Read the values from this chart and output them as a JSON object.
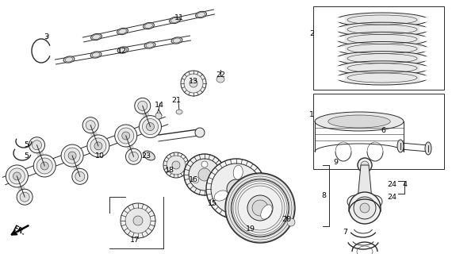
{
  "bg_color": "#ffffff",
  "line_color": "#2a2a2a",
  "fig_width": 5.7,
  "fig_height": 3.2,
  "dpi": 100,
  "labels": [
    [
      "3",
      55,
      42,
      "left"
    ],
    [
      "11",
      220,
      18,
      "left"
    ],
    [
      "12",
      148,
      60,
      "left"
    ],
    [
      "13",
      238,
      98,
      "left"
    ],
    [
      "22",
      272,
      90,
      "left"
    ],
    [
      "14",
      195,
      128,
      "left"
    ],
    [
      "21",
      216,
      122,
      "left"
    ],
    [
      "5",
      30,
      178,
      "left"
    ],
    [
      "5",
      30,
      192,
      "left"
    ],
    [
      "10",
      120,
      192,
      "left"
    ],
    [
      "23",
      178,
      192,
      "left"
    ],
    [
      "18",
      208,
      210,
      "left"
    ],
    [
      "16",
      238,
      222,
      "left"
    ],
    [
      "15",
      262,
      252,
      "left"
    ],
    [
      "19",
      310,
      284,
      "left"
    ],
    [
      "20",
      355,
      272,
      "left"
    ],
    [
      "17",
      164,
      298,
      "left"
    ],
    [
      "2",
      390,
      38,
      "left"
    ],
    [
      "1",
      390,
      140,
      "left"
    ],
    [
      "6",
      480,
      160,
      "left"
    ],
    [
      "9",
      420,
      200,
      "left"
    ],
    [
      "24",
      488,
      228,
      "left"
    ],
    [
      "4",
      508,
      228,
      "left"
    ],
    [
      "24",
      488,
      244,
      "left"
    ],
    [
      "8",
      405,
      242,
      "left"
    ],
    [
      "7",
      432,
      288,
      "left"
    ]
  ]
}
